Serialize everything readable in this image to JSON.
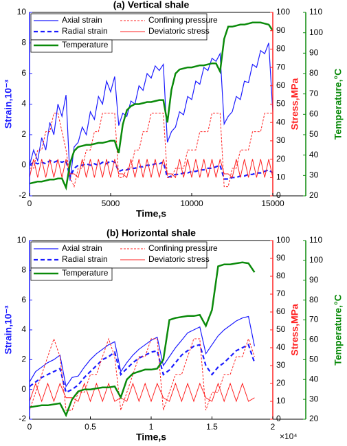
{
  "chart_data": [
    {
      "type": "line",
      "title": "(a) Vertical shale",
      "x_label": "Time,s",
      "y_label": "Strain,10⁻³",
      "y2_label": "Stress,MPa",
      "y3_label": "Temperature,°C",
      "x": [
        0,
        250,
        500,
        750,
        1000,
        1250,
        1500,
        1750,
        2000,
        2250,
        2500,
        2750,
        3000,
        3250,
        3500,
        3750,
        4000,
        4250,
        4500,
        4750,
        5000,
        5250,
        5500,
        5750,
        6000,
        6250,
        6500,
        6750,
        7000,
        7250,
        7500,
        7750,
        8000,
        8250,
        8500,
        8750,
        9000,
        9250,
        9500,
        9750,
        10000,
        10250,
        10500,
        10750,
        11000,
        11250,
        11500,
        11750,
        12000,
        12250,
        12500,
        12750,
        13000,
        13250,
        13500,
        13750,
        14000,
        14250,
        14500,
        14750,
        15000
      ],
      "xlim": [
        0,
        15000
      ],
      "xticks": [
        0,
        5000,
        10000,
        15000
      ],
      "ylim": [
        -2,
        10
      ],
      "yticks": [
        -2,
        0,
        2,
        4,
        6,
        8,
        10
      ],
      "y2lim": [
        0,
        100
      ],
      "y2ticks": [
        0,
        10,
        20,
        30,
        40,
        50,
        60,
        70,
        80,
        90,
        100
      ],
      "y3lim": [
        20,
        110
      ],
      "y3ticks": [
        20,
        30,
        40,
        50,
        60,
        70,
        80,
        90,
        100,
        110
      ],
      "series": [
        {
          "name": "Axial strain",
          "color": "#1a1aff",
          "dash": "solid",
          "width": 1.2,
          "axis": "y",
          "values": [
            0,
            1.0,
            0.3,
            1.8,
            1.0,
            2.8,
            2.0,
            4.0,
            3.2,
            4.6,
            -1.0,
            1.2,
            1.5,
            2.5,
            2.0,
            3.5,
            3.0,
            4.5,
            4.0,
            5.5,
            4.8,
            5.8,
            2.6,
            3.4,
            3.2,
            4.2,
            4.0,
            5.2,
            4.9,
            6.0,
            5.7,
            6.5,
            6.2,
            6.6,
            1.5,
            2.2,
            2.5,
            3.5,
            3.3,
            4.5,
            4.3,
            5.5,
            5.3,
            6.4,
            6.2,
            7.0,
            6.8,
            7.3,
            2.7,
            3.2,
            3.5,
            4.5,
            4.3,
            5.5,
            5.4,
            6.6,
            6.4,
            7.5,
            7.3,
            8.0,
            3.5
          ]
        },
        {
          "name": "Radial strain",
          "color": "#1a1aff",
          "dash": "dashed",
          "width": 2.2,
          "axis": "y",
          "values": [
            0,
            0.2,
            0.1,
            0.2,
            0.1,
            0.3,
            0.2,
            0.3,
            0.2,
            0.3,
            -0.8,
            -0.2,
            0,
            0,
            0.1,
            0,
            0.1,
            0,
            0.2,
            0.1,
            0.3,
            0.2,
            -0.4,
            -0.3,
            -0.3,
            -0.2,
            -0.2,
            -0.1,
            -0.1,
            0,
            0,
            0.1,
            0.1,
            0.2,
            -0.8,
            -0.7,
            -0.6,
            -0.6,
            -0.5,
            -0.5,
            -0.4,
            -0.4,
            -0.3,
            -0.3,
            -0.2,
            -0.2,
            -0.1,
            0,
            -0.9,
            -0.9,
            -0.8,
            -0.8,
            -0.7,
            -0.7,
            -0.6,
            -0.6,
            -0.5,
            -0.5,
            -0.4,
            -0.3,
            -0.5
          ]
        },
        {
          "name": "Confining pressure",
          "color": "#ff2020",
          "dash": "dashed",
          "width": 1,
          "axis": "y2",
          "values": [
            15,
            15,
            25,
            25,
            35,
            35,
            45,
            45,
            35,
            25,
            10,
            5,
            15,
            15,
            25,
            25,
            35,
            35,
            45,
            45,
            45,
            45,
            10,
            10,
            15,
            15,
            25,
            25,
            35,
            35,
            45,
            45,
            45,
            45,
            10,
            10,
            15,
            15,
            15,
            25,
            25,
            25,
            35,
            35,
            35,
            45,
            45,
            45,
            5,
            5,
            15,
            15,
            25,
            25,
            25,
            35,
            35,
            35,
            45,
            45,
            45
          ]
        },
        {
          "name": "Deviatoric stress",
          "color": "#ff2020",
          "dash": "solid",
          "width": 1,
          "axis": "y2",
          "values": [
            10,
            20,
            10,
            20,
            10,
            20,
            10,
            20,
            10,
            20,
            12,
            12,
            10,
            20,
            10,
            20,
            10,
            20,
            10,
            20,
            10,
            20,
            12,
            12,
            10,
            20,
            10,
            20,
            10,
            20,
            10,
            20,
            10,
            20,
            12,
            12,
            10,
            20,
            10,
            20,
            10,
            20,
            10,
            20,
            10,
            20,
            10,
            20,
            12,
            12,
            10,
            20,
            10,
            20,
            10,
            20,
            10,
            20,
            10,
            20,
            10
          ]
        },
        {
          "name": "Temperature",
          "color": "#0a8a0a",
          "dash": "solid",
          "width": 2.5,
          "axis": "y3",
          "values": [
            26,
            26.5,
            27,
            27,
            27.5,
            28,
            28,
            28.5,
            28.5,
            24,
            36,
            42,
            44,
            44.5,
            45,
            45,
            45.5,
            46,
            46,
            46.5,
            47,
            47,
            41,
            55,
            62,
            64,
            65,
            65,
            65.5,
            66,
            66,
            66.5,
            67,
            67,
            56,
            72,
            80,
            82,
            82.5,
            83,
            83,
            83.5,
            84,
            84,
            84.5,
            85,
            85,
            81,
            97,
            103,
            103,
            103.5,
            104,
            104,
            104.5,
            105,
            105,
            105,
            104.5,
            104,
            101
          ]
        }
      ]
    },
    {
      "type": "line",
      "title": "(b) Horizontal shale",
      "x_label": "Time,s",
      "x_multiplier": "×10⁴",
      "y_label": "Strain,10⁻³",
      "y2_label": "Stress,MPa",
      "y3_label": "Temperature,°C",
      "x": [
        0,
        0.05,
        0.1,
        0.15,
        0.2,
        0.25,
        0.3,
        0.35,
        0.4,
        0.45,
        0.5,
        0.55,
        0.6,
        0.65,
        0.7,
        0.75,
        0.8,
        0.85,
        0.9,
        0.95,
        1.0,
        1.05,
        1.1,
        1.15,
        1.2,
        1.25,
        1.3,
        1.35,
        1.4,
        1.45,
        1.5,
        1.55,
        1.6,
        1.65,
        1.7,
        1.75,
        1.8,
        1.85
      ],
      "xlim": [
        0,
        2
      ],
      "xticks": [
        0,
        0.5,
        1,
        1.5,
        2
      ],
      "ylim": [
        -2,
        10
      ],
      "yticks": [
        -2,
        0,
        2,
        4,
        6,
        8,
        10
      ],
      "y2lim": [
        0,
        100
      ],
      "y2ticks": [
        0,
        10,
        20,
        30,
        40,
        50,
        60,
        70,
        80,
        90,
        100
      ],
      "y3lim": [
        20,
        110
      ],
      "y3ticks": [
        20,
        30,
        40,
        50,
        60,
        70,
        80,
        90,
        100,
        110
      ],
      "series": [
        {
          "name": "Axial strain",
          "color": "#1a1aff",
          "dash": "solid",
          "width": 1.2,
          "axis": "y",
          "values": [
            0.5,
            1.2,
            1.5,
            1.8,
            2.0,
            2.3,
            0.2,
            0.8,
            0.9,
            1.5,
            2.0,
            2.4,
            2.7,
            3.0,
            3.2,
            1.2,
            1.8,
            2.3,
            2.7,
            3.0,
            3.3,
            3.5,
            1.6,
            2.2,
            2.8,
            3.3,
            3.8,
            4.0,
            4.2,
            2.4,
            3.0,
            3.6,
            4.0,
            4.3,
            4.6,
            4.8,
            4.9,
            2.9
          ]
        },
        {
          "name": "Radial strain",
          "color": "#1a1aff",
          "dash": "dashed",
          "width": 2.2,
          "axis": "y",
          "values": [
            0.2,
            0.5,
            0.8,
            1.0,
            1.2,
            1.4,
            -0.2,
            0.0,
            0.3,
            0.8,
            1.2,
            1.6,
            2.0,
            2.2,
            2.5,
            1.0,
            1.4,
            1.8,
            2.1,
            2.3,
            2.5,
            2.6,
            1.0,
            1.3,
            1.8,
            2.3,
            2.6,
            2.9,
            3.0,
            1.6,
            1.0,
            1.5,
            1.8,
            2.2,
            2.6,
            2.8,
            3.0,
            1.8
          ]
        },
        {
          "name": "Confining pressure",
          "color": "#ff2020",
          "dash": "dashed",
          "width": 1,
          "axis": "y2",
          "values": [
            5,
            15,
            25,
            35,
            45,
            35,
            5,
            5,
            15,
            15,
            25,
            25,
            35,
            45,
            35,
            5,
            15,
            25,
            35,
            35,
            45,
            45,
            5,
            15,
            25,
            25,
            35,
            45,
            45,
            5,
            15,
            15,
            25,
            25,
            35,
            35,
            45,
            35
          ]
        },
        {
          "name": "Deviatoric stress",
          "color": "#ff2020",
          "dash": "solid",
          "width": 1,
          "axis": "y2",
          "values": [
            10,
            20,
            10,
            20,
            10,
            20,
            12,
            12,
            10,
            20,
            10,
            20,
            10,
            20,
            10,
            12,
            10,
            20,
            10,
            20,
            10,
            20,
            12,
            10,
            20,
            10,
            20,
            10,
            20,
            12,
            10,
            20,
            10,
            20,
            10,
            20,
            10,
            12
          ]
        },
        {
          "name": "Temperature",
          "color": "#0a8a0a",
          "dash": "solid",
          "width": 2.5,
          "axis": "y3",
          "values": [
            26,
            26.5,
            27,
            27,
            27.5,
            28,
            22,
            30,
            34,
            35,
            35,
            35.5,
            36,
            36,
            36.5,
            31,
            40,
            43,
            44,
            45,
            45,
            45.5,
            50,
            70,
            71,
            71.5,
            72,
            72,
            72.5,
            67,
            75,
            97,
            98,
            98,
            98.5,
            99,
            98.5,
            94
          ]
        }
      ]
    }
  ]
}
